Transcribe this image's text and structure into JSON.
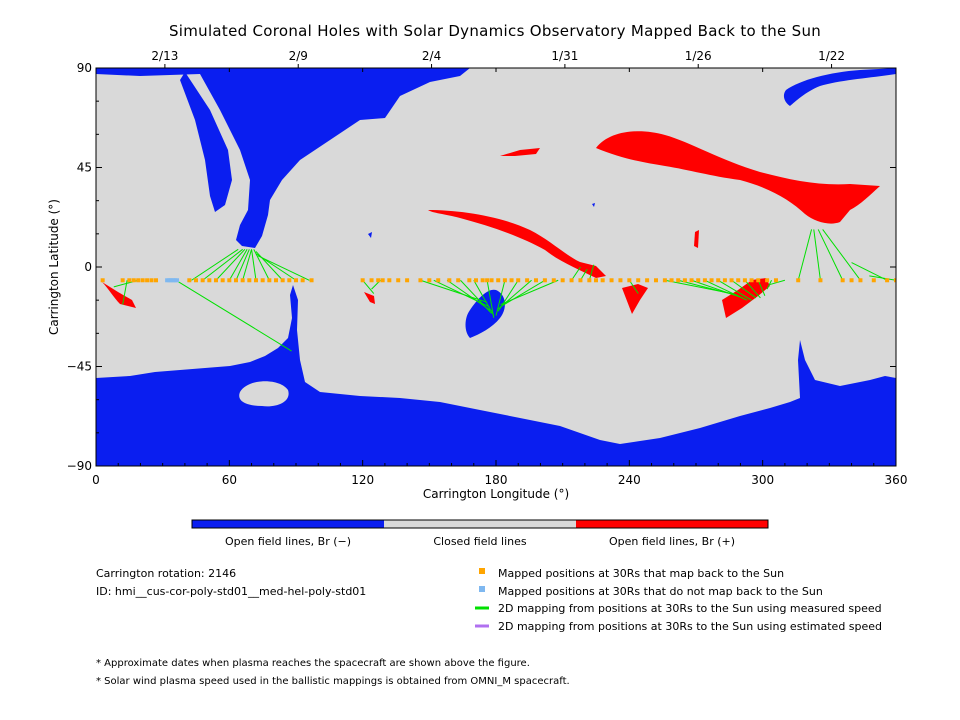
{
  "title": "Simulated Coronal Holes with Solar Dynamics Observatory Mapped Back to the Sun",
  "chart_data": {
    "type": "scatter",
    "title": "Simulated Coronal Holes with Solar Dynamics Observatory Mapped Back to the Sun",
    "xlabel": "Carrington Longitude (°)",
    "ylabel": "Carrington Latitude (°)",
    "xlim": [
      0,
      360
    ],
    "ylim": [
      -90,
      90
    ],
    "x_ticks": [
      0,
      60,
      120,
      180,
      240,
      300,
      360
    ],
    "x_tick_labels": [
      "0",
      "60",
      "120",
      "180",
      "240",
      "300",
      "360"
    ],
    "y_ticks": [
      90,
      45,
      0,
      -45,
      -90
    ],
    "y_tick_labels": [
      "90",
      "45",
      "0",
      "−45",
      "−90"
    ],
    "top_axis": {
      "dates": [
        "2/13",
        "2/9",
        "2/4",
        "1/31",
        "1/26",
        "1/22"
      ],
      "longitudes": [
        31,
        91,
        151,
        211,
        271,
        331
      ]
    },
    "colors": {
      "open_negative": "#0a1ef0",
      "closed": "#d9d9d9",
      "open_positive": "#ff0000",
      "mapped_back": "#ffa500",
      "not_mapped": "#7fb8f0",
      "measured_speed": "#00e000",
      "estimated_speed": "#b070f0"
    },
    "mapped_positions_lat": -6,
    "mapped_positions_lon": [
      3,
      12,
      15,
      17,
      19,
      21,
      23,
      25,
      27,
      42,
      45,
      48,
      51,
      54,
      57,
      60,
      63,
      66,
      69,
      72,
      75,
      78,
      81,
      84,
      87,
      90,
      93,
      97,
      120,
      124,
      127,
      129,
      132,
      136,
      140,
      146,
      150,
      154,
      159,
      163,
      168,
      171,
      174,
      176,
      178,
      181,
      184,
      187,
      190,
      194,
      198,
      202,
      206,
      210,
      214,
      218,
      222,
      225,
      228,
      232,
      236,
      240,
      244,
      248,
      252,
      256,
      259,
      262,
      265,
      268,
      271,
      274,
      277,
      280,
      283,
      286,
      289,
      292,
      295,
      298,
      302,
      306,
      316,
      326,
      336,
      340,
      344,
      350,
      356,
      360
    ],
    "not_mapped_lon": [
      32,
      33,
      34,
      35,
      36
    ],
    "mapping_lines": [
      {
        "from": [
          14,
          -6
        ],
        "to": [
          12,
          -17
        ]
      },
      {
        "from": [
          19,
          -6
        ],
        "to": [
          8,
          -9
        ]
      },
      {
        "from": [
          43,
          -6
        ],
        "to": [
          64,
          8
        ]
      },
      {
        "from": [
          48,
          -6
        ],
        "to": [
          66,
          8
        ]
      },
      {
        "from": [
          54,
          -6
        ],
        "to": [
          67,
          8
        ]
      },
      {
        "from": [
          60,
          -6
        ],
        "to": [
          68,
          8
        ]
      },
      {
        "from": [
          63,
          -6
        ],
        "to": [
          69,
          8
        ]
      },
      {
        "from": [
          66,
          -6
        ],
        "to": [
          70,
          8
        ]
      },
      {
        "from": [
          72,
          -6
        ],
        "to": [
          70,
          8
        ]
      },
      {
        "from": [
          78,
          -6
        ],
        "to": [
          71,
          8
        ]
      },
      {
        "from": [
          84,
          -6
        ],
        "to": [
          72,
          7
        ]
      },
      {
        "from": [
          90,
          -6
        ],
        "to": [
          72,
          6
        ]
      },
      {
        "from": [
          96,
          -6
        ],
        "to": [
          73,
          5
        ]
      },
      {
        "from": [
          36,
          -6
        ],
        "to": [
          88,
          -38
        ]
      },
      {
        "from": [
          120,
          -6
        ],
        "to": [
          125,
          -12
        ]
      },
      {
        "from": [
          128,
          -6
        ],
        "to": [
          124,
          -10
        ]
      },
      {
        "from": [
          146,
          -6
        ],
        "to": [
          176,
          -16
        ]
      },
      {
        "from": [
          152,
          -6
        ],
        "to": [
          177,
          -18
        ]
      },
      {
        "from": [
          158,
          -6
        ],
        "to": [
          178,
          -20
        ]
      },
      {
        "from": [
          164,
          -6
        ],
        "to": [
          178,
          -21
        ]
      },
      {
        "from": [
          170,
          -6
        ],
        "to": [
          179,
          -22
        ]
      },
      {
        "from": [
          176,
          -6
        ],
        "to": [
          179,
          -23
        ]
      },
      {
        "from": [
          184,
          -6
        ],
        "to": [
          180,
          -22
        ]
      },
      {
        "from": [
          190,
          -6
        ],
        "to": [
          181,
          -20
        ]
      },
      {
        "from": [
          196,
          -6
        ],
        "to": [
          181,
          -19
        ]
      },
      {
        "from": [
          202,
          -6
        ],
        "to": [
          182,
          -18
        ]
      },
      {
        "from": [
          208,
          -6
        ],
        "to": [
          182,
          -17
        ]
      },
      {
        "from": [
          214,
          -6
        ],
        "to": [
          218,
          0
        ]
      },
      {
        "from": [
          218,
          -6
        ],
        "to": [
          221,
          -1
        ]
      },
      {
        "from": [
          222,
          -6
        ],
        "to": [
          224,
          1
        ]
      },
      {
        "from": [
          240,
          -6
        ],
        "to": [
          244,
          -12
        ]
      },
      {
        "from": [
          256,
          -6
        ],
        "to": [
          286,
          -12
        ]
      },
      {
        "from": [
          262,
          -6
        ],
        "to": [
          289,
          -13
        ]
      },
      {
        "from": [
          268,
          -6
        ],
        "to": [
          291,
          -14
        ]
      },
      {
        "from": [
          274,
          -6
        ],
        "to": [
          293,
          -15
        ]
      },
      {
        "from": [
          280,
          -6
        ],
        "to": [
          295,
          -15
        ]
      },
      {
        "from": [
          286,
          -6
        ],
        "to": [
          297,
          -14
        ]
      },
      {
        "from": [
          292,
          -6
        ],
        "to": [
          299,
          -14
        ]
      },
      {
        "from": [
          298,
          -6
        ],
        "to": [
          301,
          -13
        ]
      },
      {
        "from": [
          304,
          -6
        ],
        "to": [
          302,
          -10
        ]
      },
      {
        "from": [
          310,
          -6
        ],
        "to": [
          303,
          -8
        ]
      },
      {
        "from": [
          316,
          -6
        ],
        "to": [
          322,
          17
        ]
      },
      {
        "from": [
          326,
          -6
        ],
        "to": [
          323,
          17
        ]
      },
      {
        "from": [
          336,
          -6
        ],
        "to": [
          325,
          17
        ]
      },
      {
        "from": [
          344,
          -6
        ],
        "to": [
          327,
          17
        ]
      },
      {
        "from": [
          356,
          -6
        ],
        "to": [
          340,
          2
        ]
      },
      {
        "from": [
          360,
          -6
        ],
        "to": [
          348,
          -4
        ]
      }
    ],
    "legend": [
      {
        "label": "Mapped positions at 30Rs that map back to the Sun",
        "kind": "square",
        "color": "#ffa500"
      },
      {
        "label": "Mapped positions at 30Rs that do not map back to the Sun",
        "kind": "square",
        "color": "#7fb8f0"
      },
      {
        "label": "2D mapping from positions at 30Rs to the Sun using measured speed",
        "kind": "line",
        "color": "#00e000"
      },
      {
        "label": "2D mapping from positions at 30Rs to the Sun using estimated speed",
        "kind": "line",
        "color": "#b070f0"
      }
    ],
    "colorbar": {
      "labels": [
        "Open field lines, Br (−)",
        "Closed field lines",
        "Open field lines, Br (+)"
      ]
    }
  },
  "info": {
    "rotation": "Carrington rotation: 2146",
    "id": "ID: hmi__cus-cor-poly-std01__med-hel-poly-std01"
  },
  "notes": [
    "* Approximate dates when plasma reaches the spacecraft are shown above the figure.",
    "* Solar wind plasma speed used in the ballistic mappings is obtained from OMNI_M spacecraft."
  ]
}
